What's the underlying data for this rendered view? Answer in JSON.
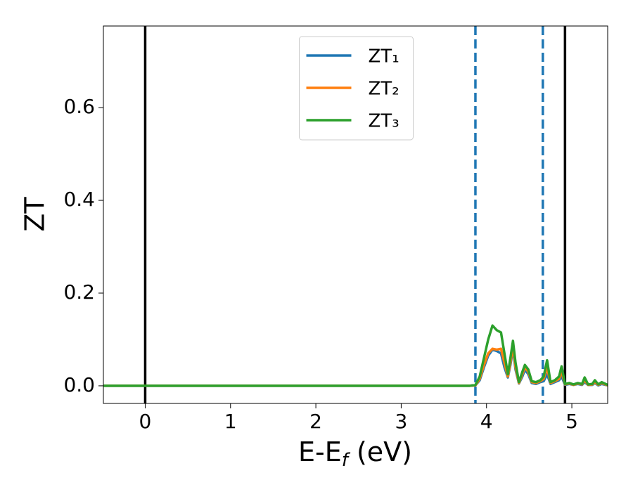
{
  "chart_data": {
    "type": "line",
    "ylabel": "ZT",
    "xlabel": [
      {
        "text": "E-E"
      },
      {
        "text": "f",
        "sub": true
      },
      {
        "text": " (eV)"
      }
    ],
    "x": [
      -0.49,
      3.8,
      3.87,
      3.92,
      3.97,
      4.02,
      4.07,
      4.12,
      4.17,
      4.21,
      4.25,
      4.28,
      4.31,
      4.34,
      4.38,
      4.42,
      4.45,
      4.49,
      4.53,
      4.58,
      4.63,
      4.67,
      4.71,
      4.75,
      4.8,
      4.85,
      4.88,
      4.92,
      4.97,
      5.02,
      5.07,
      5.12,
      5.15,
      5.19,
      5.24,
      5.27,
      5.31,
      5.35,
      5.42
    ],
    "series": [
      {
        "name": "ZT₁",
        "color": "#1f77b4",
        "values": [
          0,
          0,
          0.001,
          0.012,
          0.04,
          0.065,
          0.078,
          0.075,
          0.07,
          0.04,
          0.018,
          0.045,
          0.08,
          0.035,
          0.005,
          0.02,
          0.035,
          0.025,
          0.006,
          0.004,
          0.008,
          0.01,
          0.025,
          0.004,
          0.008,
          0.012,
          0.02,
          0.002,
          0.004,
          0.002,
          0.004,
          0.002,
          0.008,
          0.002,
          0.002,
          0.006,
          0.001,
          0.004,
          0.001
        ]
      },
      {
        "name": "ZT₂",
        "color": "#ff7f0e",
        "values": [
          0,
          0,
          0.001,
          0.015,
          0.045,
          0.07,
          0.08,
          0.078,
          0.08,
          0.05,
          0.02,
          0.05,
          0.085,
          0.04,
          0.006,
          0.025,
          0.04,
          0.03,
          0.008,
          0.006,
          0.01,
          0.015,
          0.04,
          0.006,
          0.01,
          0.015,
          0.03,
          0.003,
          0.005,
          0.002,
          0.005,
          0.003,
          0.012,
          0.002,
          0.003,
          0.008,
          0.002,
          0.006,
          0.001
        ]
      },
      {
        "name": "ZT₃",
        "color": "#2ca02c",
        "values": [
          0,
          0,
          0.002,
          0.02,
          0.06,
          0.1,
          0.13,
          0.12,
          0.115,
          0.07,
          0.025,
          0.06,
          0.097,
          0.05,
          0.008,
          0.03,
          0.045,
          0.035,
          0.01,
          0.008,
          0.012,
          0.02,
          0.055,
          0.008,
          0.012,
          0.02,
          0.042,
          0.004,
          0.006,
          0.003,
          0.006,
          0.004,
          0.018,
          0.003,
          0.004,
          0.012,
          0.003,
          0.008,
          0.002
        ]
      }
    ],
    "vlines": [
      {
        "x": 0,
        "color": "#000000",
        "style": "solid"
      },
      {
        "x": 4.92,
        "color": "#000000",
        "style": "solid"
      },
      {
        "x": 3.87,
        "color": "#1f77b4",
        "style": "dashed"
      },
      {
        "x": 4.66,
        "color": "#1f77b4",
        "style": "dashed"
      }
    ],
    "xlim": [
      -0.49,
      5.42
    ],
    "xticks": [
      0,
      1,
      2,
      3,
      4,
      5
    ],
    "ylim": [
      -0.038,
      0.776
    ],
    "yticks": [
      {
        "value": 0,
        "label": "0.0"
      },
      {
        "value": 0.2,
        "label": "0.2"
      },
      {
        "value": 0.4,
        "label": "0.4"
      },
      {
        "value": 0.6,
        "label": "0.6"
      }
    ],
    "legend": "upper center",
    "grid": false
  }
}
